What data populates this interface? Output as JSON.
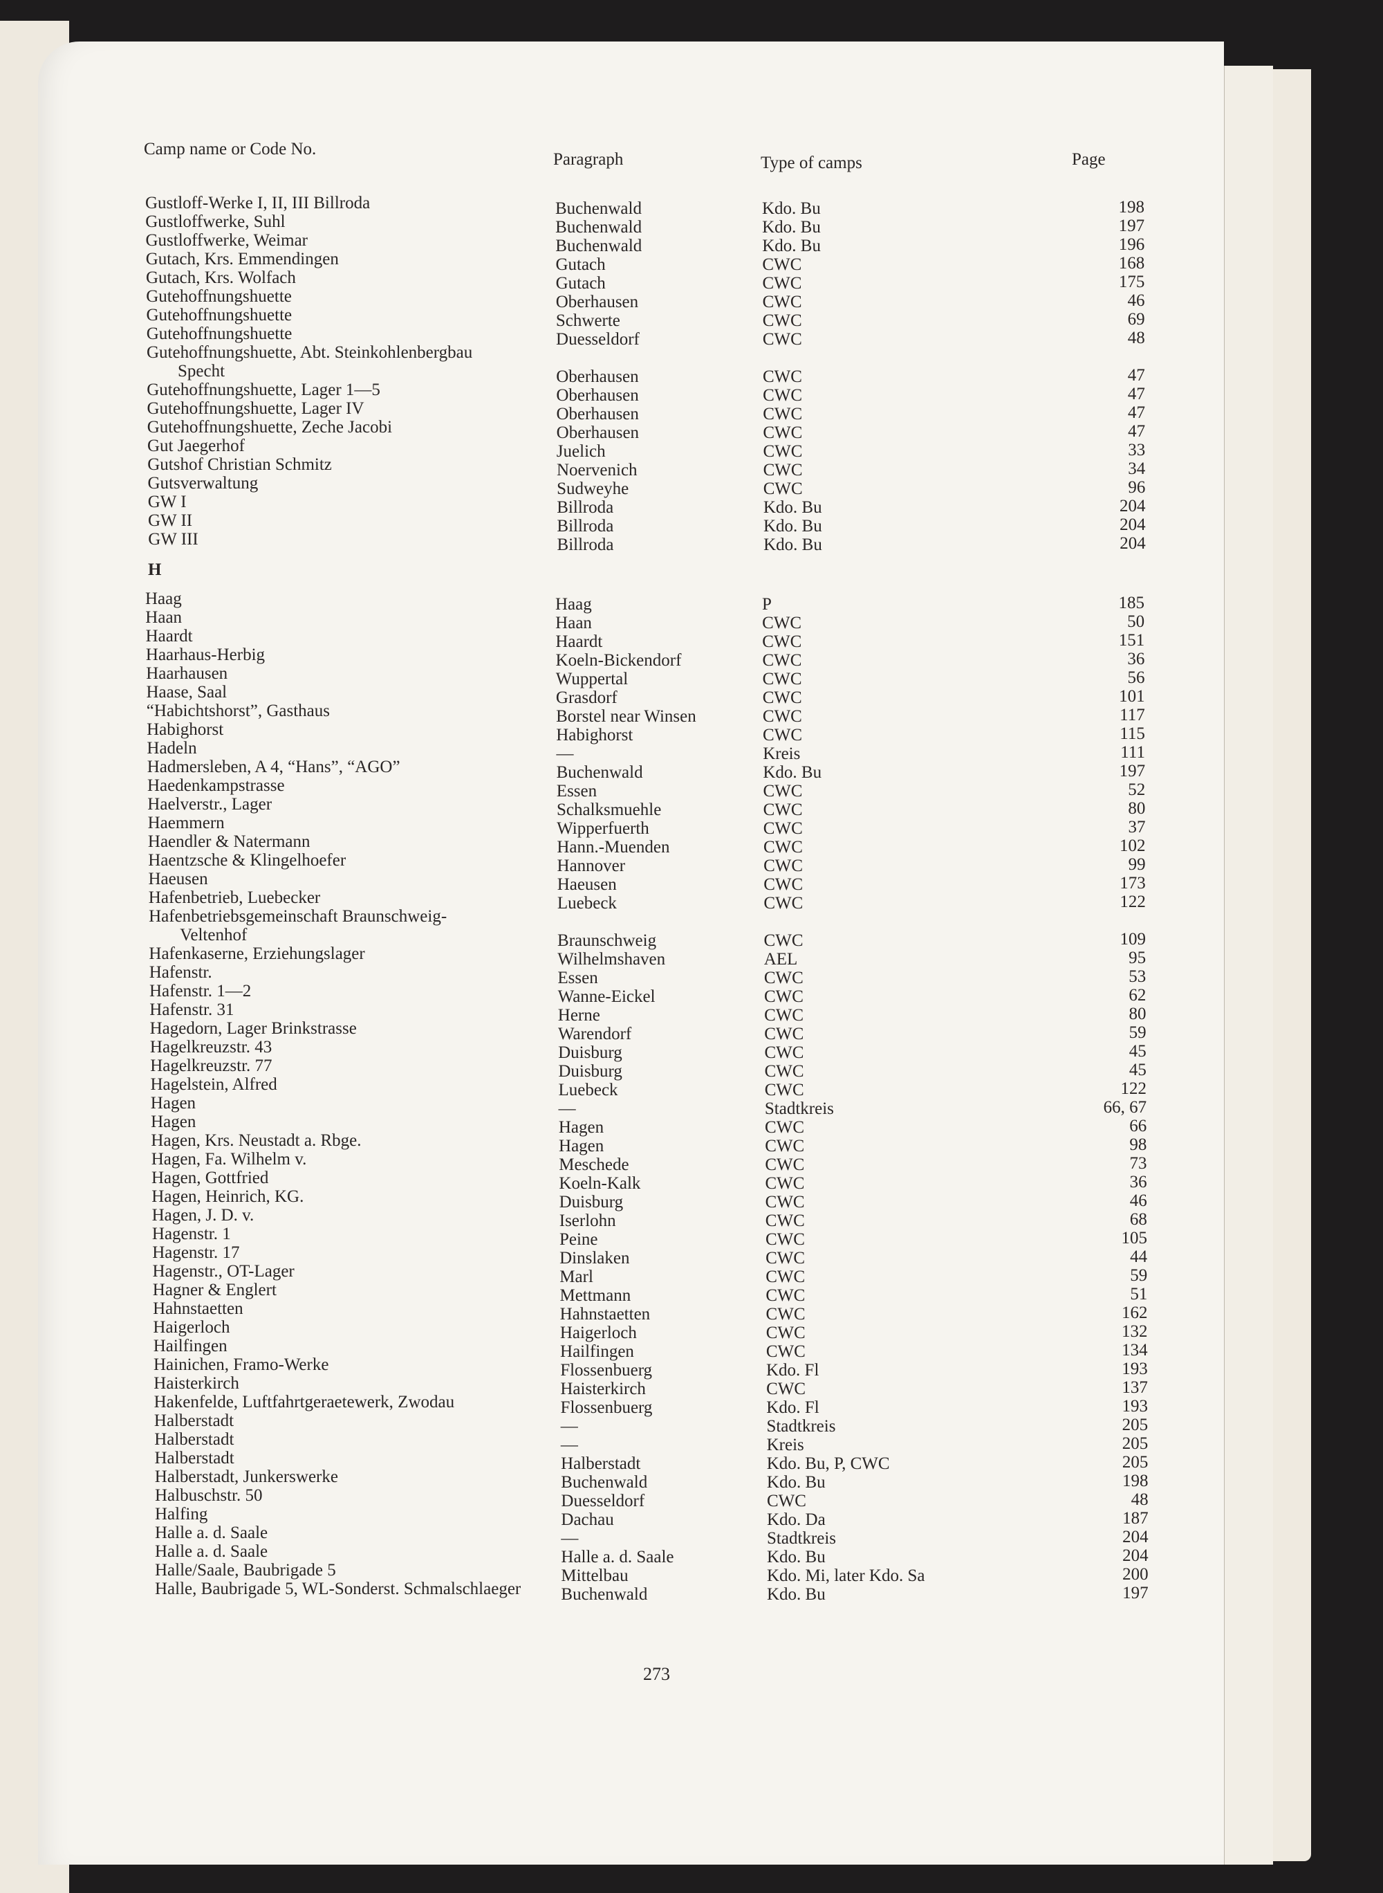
{
  "headers": {
    "name": "Camp name or Code No.",
    "paragraph": "Paragraph",
    "type": "Type of camps",
    "page": "Page"
  },
  "sections": [
    {
      "heading": "",
      "entries": [
        {
          "name": "Gustloff-Werke I, II, III Billroda",
          "paragraph": "Buchenwald",
          "type": "Kdo. Bu",
          "page": "198"
        },
        {
          "name": "Gustloffwerke, Suhl",
          "paragraph": "Buchenwald",
          "type": "Kdo. Bu",
          "page": "197"
        },
        {
          "name": "Gustloffwerke, Weimar",
          "paragraph": "Buchenwald",
          "type": "Kdo. Bu",
          "page": "196"
        },
        {
          "name": "Gutach, Krs. Emmendingen",
          "paragraph": "Gutach",
          "type": "CWC",
          "page": "168"
        },
        {
          "name": "Gutach, Krs. Wolfach",
          "paragraph": "Gutach",
          "type": "CWC",
          "page": "175"
        },
        {
          "name": "Gutehoffnungshuette",
          "paragraph": "Oberhausen",
          "type": "CWC",
          "page": "46"
        },
        {
          "name": "Gutehoffnungshuette",
          "paragraph": "Schwerte",
          "type": "CWC",
          "page": "69"
        },
        {
          "name": "Gutehoffnungshuette",
          "paragraph": "Duesseldorf",
          "type": "CWC",
          "page": "48"
        },
        {
          "name": "Gutehoffnungshuette, Abt. Steinkohlenbergbau",
          "name_cont": "Specht",
          "paragraph": "Oberhausen",
          "type": "CWC",
          "page": "47"
        },
        {
          "name": "Gutehoffnungshuette, Lager 1—5",
          "paragraph": "Oberhausen",
          "type": "CWC",
          "page": "47"
        },
        {
          "name": "Gutehoffnungshuette, Lager IV",
          "paragraph": "Oberhausen",
          "type": "CWC",
          "page": "47"
        },
        {
          "name": "Gutehoffnungshuette, Zeche Jacobi",
          "paragraph": "Oberhausen",
          "type": "CWC",
          "page": "47"
        },
        {
          "name": "Gut Jaegerhof",
          "paragraph": "Juelich",
          "type": "CWC",
          "page": "33"
        },
        {
          "name": "Gutshof Christian Schmitz",
          "paragraph": "Noervenich",
          "type": "CWC",
          "page": "34"
        },
        {
          "name": "Gutsverwaltung",
          "paragraph": "Sudweyhe",
          "type": "CWC",
          "page": "96"
        },
        {
          "name": "GW I",
          "paragraph": "Billroda",
          "type": "Kdo. Bu",
          "page": "204"
        },
        {
          "name": "GW II",
          "paragraph": "Billroda",
          "type": "Kdo. Bu",
          "page": "204"
        },
        {
          "name": "GW III",
          "paragraph": "Billroda",
          "type": "Kdo. Bu",
          "page": "204"
        }
      ]
    },
    {
      "heading": "H",
      "entries": [
        {
          "name": "Haag",
          "paragraph": "Haag",
          "type": "P",
          "page": "185"
        },
        {
          "name": "Haan",
          "paragraph": "Haan",
          "type": "CWC",
          "page": "50"
        },
        {
          "name": "Haardt",
          "paragraph": "Haardt",
          "type": "CWC",
          "page": "151"
        },
        {
          "name": "Haarhaus-Herbig",
          "paragraph": "Koeln-Bickendorf",
          "type": "CWC",
          "page": "36"
        },
        {
          "name": "Haarhausen",
          "paragraph": "Wuppertal",
          "type": "CWC",
          "page": "56"
        },
        {
          "name": "Haase, Saal",
          "paragraph": "Grasdorf",
          "type": "CWC",
          "page": "101"
        },
        {
          "name": "“Habichtshorst”, Gasthaus",
          "paragraph": "Borstel near Winsen",
          "type": "CWC",
          "page": "117"
        },
        {
          "name": "Habighorst",
          "paragraph": "Habighorst",
          "type": "CWC",
          "page": "115"
        },
        {
          "name": "Hadeln",
          "paragraph": "—",
          "type": "Kreis",
          "page": "111"
        },
        {
          "name": "Hadmersleben, A 4, “Hans”, “AGO”",
          "paragraph": "Buchenwald",
          "type": "Kdo. Bu",
          "page": "197"
        },
        {
          "name": "Haedenkampstrasse",
          "paragraph": "Essen",
          "type": "CWC",
          "page": "52"
        },
        {
          "name": "Haelverstr., Lager",
          "paragraph": "Schalksmuehle",
          "type": "CWC",
          "page": "80"
        },
        {
          "name": "Haemmern",
          "paragraph": "Wipperfuerth",
          "type": "CWC",
          "page": "37"
        },
        {
          "name": "Haendler & Natermann",
          "paragraph": "Hann.-Muenden",
          "type": "CWC",
          "page": "102"
        },
        {
          "name": "Haentzsche & Klingelhoefer",
          "paragraph": "Hannover",
          "type": "CWC",
          "page": "99"
        },
        {
          "name": "Haeusen",
          "paragraph": "Haeusen",
          "type": "CWC",
          "page": "173"
        },
        {
          "name": "Hafenbetrieb, Luebecker",
          "paragraph": "Luebeck",
          "type": "CWC",
          "page": "122"
        },
        {
          "name": "Hafenbetriebsgemeinschaft Braunschweig-",
          "name_cont": "Veltenhof",
          "paragraph": "Braunschweig",
          "type": "CWC",
          "page": "109"
        },
        {
          "name": "Hafenkaserne, Erziehungslager",
          "paragraph": "Wilhelmshaven",
          "type": "AEL",
          "page": "95"
        },
        {
          "name": "Hafenstr.",
          "paragraph": "Essen",
          "type": "CWC",
          "page": "53"
        },
        {
          "name": "Hafenstr. 1—2",
          "paragraph": "Wanne-Eickel",
          "type": "CWC",
          "page": "62"
        },
        {
          "name": "Hafenstr. 31",
          "paragraph": "Herne",
          "type": "CWC",
          "page": "80"
        },
        {
          "name": "Hagedorn, Lager Brinkstrasse",
          "paragraph": "Warendorf",
          "type": "CWC",
          "page": "59"
        },
        {
          "name": "Hagelkreuzstr. 43",
          "paragraph": "Duisburg",
          "type": "CWC",
          "page": "45"
        },
        {
          "name": "Hagelkreuzstr. 77",
          "paragraph": "Duisburg",
          "type": "CWC",
          "page": "45"
        },
        {
          "name": "Hagelstein, Alfred",
          "paragraph": "Luebeck",
          "type": "CWC",
          "page": "122"
        },
        {
          "name": "Hagen",
          "paragraph": "—",
          "type": "Stadtkreis",
          "page": "66, 67"
        },
        {
          "name": "Hagen",
          "paragraph": "Hagen",
          "type": "CWC",
          "page": "66"
        },
        {
          "name": "Hagen, Krs. Neustadt a. Rbge.",
          "paragraph": "Hagen",
          "type": "CWC",
          "page": "98"
        },
        {
          "name": "Hagen, Fa. Wilhelm v.",
          "paragraph": "Meschede",
          "type": "CWC",
          "page": "73"
        },
        {
          "name": "Hagen, Gottfried",
          "paragraph": "Koeln-Kalk",
          "type": "CWC",
          "page": "36"
        },
        {
          "name": "Hagen, Heinrich, KG.",
          "paragraph": "Duisburg",
          "type": "CWC",
          "page": "46"
        },
        {
          "name": "Hagen, J. D. v.",
          "paragraph": "Iserlohn",
          "type": "CWC",
          "page": "68"
        },
        {
          "name": "Hagenstr. 1",
          "paragraph": "Peine",
          "type": "CWC",
          "page": "105"
        },
        {
          "name": "Hagenstr. 17",
          "paragraph": "Dinslaken",
          "type": "CWC",
          "page": "44"
        },
        {
          "name": "Hagenstr., OT-Lager",
          "paragraph": "Marl",
          "type": "CWC",
          "page": "59"
        },
        {
          "name": "Hagner & Englert",
          "paragraph": "Mettmann",
          "type": "CWC",
          "page": "51"
        },
        {
          "name": "Hahnstaetten",
          "paragraph": "Hahnstaetten",
          "type": "CWC",
          "page": "162"
        },
        {
          "name": "Haigerloch",
          "paragraph": "Haigerloch",
          "type": "CWC",
          "page": "132"
        },
        {
          "name": "Hailfingen",
          "paragraph": "Hailfingen",
          "type": "CWC",
          "page": "134"
        },
        {
          "name": "Hainichen, Framo-Werke",
          "paragraph": "Flossenbuerg",
          "type": "Kdo. Fl",
          "page": "193"
        },
        {
          "name": "Haisterkirch",
          "paragraph": "Haisterkirch",
          "type": "CWC",
          "page": "137"
        },
        {
          "name": "Hakenfelde, Luftfahrtgeraetewerk, Zwodau",
          "paragraph": "Flossenbuerg",
          "type": "Kdo. Fl",
          "page": "193"
        },
        {
          "name": "Halberstadt",
          "paragraph": "—",
          "type": "Stadtkreis",
          "page": "205"
        },
        {
          "name": "Halberstadt",
          "paragraph": "—",
          "type": "Kreis",
          "page": "205"
        },
        {
          "name": "Halberstadt",
          "paragraph": "Halberstadt",
          "type": "Kdo. Bu, P, CWC",
          "page": "205"
        },
        {
          "name": "Halberstadt, Junkerswerke",
          "paragraph": "Buchenwald",
          "type": "Kdo. Bu",
          "page": "198"
        },
        {
          "name": "Halbuschstr. 50",
          "paragraph": "Duesseldorf",
          "type": "CWC",
          "page": "48"
        },
        {
          "name": "Halfing",
          "paragraph": "Dachau",
          "type": "Kdo. Da",
          "page": "187"
        },
        {
          "name": "Halle a. d. Saale",
          "paragraph": "—",
          "type": "Stadtkreis",
          "page": "204"
        },
        {
          "name": "Halle a. d. Saale",
          "paragraph": "Halle a. d. Saale",
          "type": "Kdo. Bu",
          "page": "204"
        },
        {
          "name": "Halle/Saale, Baubrigade 5",
          "paragraph": "Mittelbau",
          "type": "Kdo. Mi, later Kdo. Sa",
          "page": "200"
        },
        {
          "name": "Halle, Baubrigade 5, WL-Sonderst. Schmalschlaeger",
          "paragraph": "Buchenwald",
          "type": "Kdo. Bu",
          "page": "197"
        }
      ]
    }
  ],
  "folio": "273",
  "colors": {
    "background": "#1e1c1d",
    "paper": "#f6f4ef",
    "ink": "#2a2626"
  }
}
